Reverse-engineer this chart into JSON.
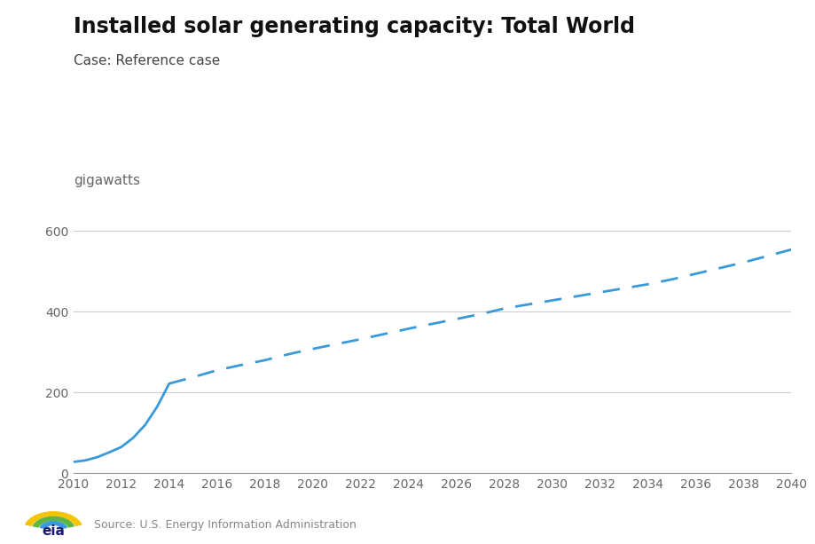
{
  "title": "Installed solar generating capacity: Total World",
  "subtitle": "Case: Reference case",
  "ylabel": "gigawatts",
  "source": "Source: U.S. Energy Information Administration",
  "line_color": "#3a9ad9",
  "background_color": "#ffffff",
  "solid_years": [
    2010,
    2010.5,
    2011,
    2011.5,
    2012,
    2012.5,
    2013,
    2013.5,
    2014
  ],
  "solid_values": [
    28,
    32,
    40,
    52,
    65,
    88,
    120,
    165,
    222
  ],
  "dashed_years": [
    2014,
    2015,
    2016,
    2017,
    2018,
    2019,
    2020,
    2021,
    2022,
    2023,
    2024,
    2025,
    2026,
    2027,
    2028,
    2029,
    2030,
    2031,
    2032,
    2033,
    2034,
    2035,
    2036,
    2037,
    2038,
    2039,
    2040
  ],
  "dashed_values": [
    222,
    238,
    255,
    268,
    280,
    295,
    308,
    320,
    332,
    345,
    358,
    370,
    382,
    394,
    408,
    418,
    428,
    438,
    448,
    458,
    468,
    480,
    494,
    508,
    522,
    538,
    554
  ],
  "xlim": [
    2010,
    2040
  ],
  "ylim": [
    0,
    660
  ],
  "yticks": [
    0,
    200,
    400,
    600
  ],
  "xticks": [
    2010,
    2012,
    2014,
    2016,
    2018,
    2020,
    2022,
    2024,
    2026,
    2028,
    2030,
    2032,
    2034,
    2036,
    2038,
    2040
  ],
  "grid_color": "#cccccc",
  "tick_label_color": "#666666",
  "title_fontsize": 17,
  "subtitle_fontsize": 11,
  "axis_label_fontsize": 11,
  "tick_fontsize": 10,
  "source_fontsize": 9
}
